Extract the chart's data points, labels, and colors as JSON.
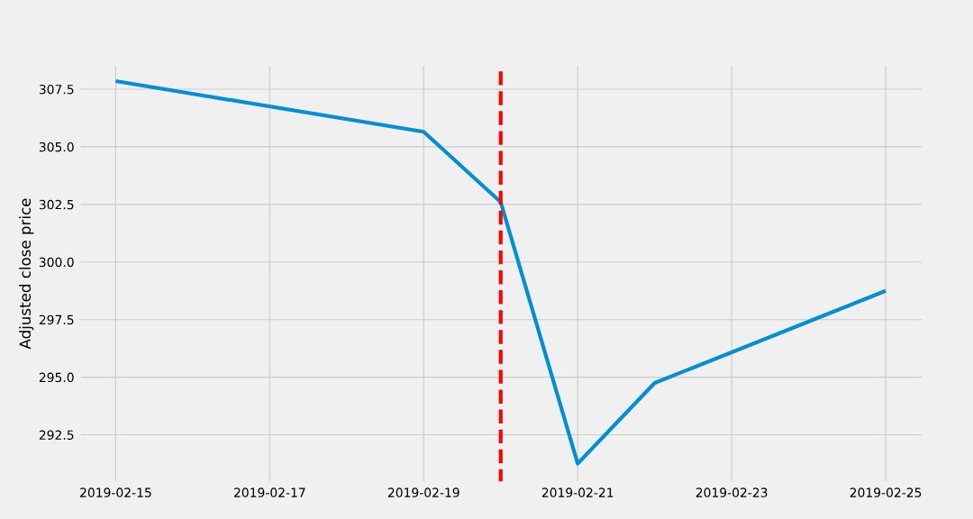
{
  "chart_data": {
    "type": "line",
    "ylabel": "Adjusted close price",
    "x": [
      "2019-02-15",
      "2019-02-19",
      "2019-02-20",
      "2019-02-21",
      "2019-02-22",
      "2019-02-25"
    ],
    "series": [
      {
        "color": "#008fd5",
        "values": [
          307.85,
          305.65,
          302.6,
          291.25,
          294.75,
          298.75
        ]
      }
    ],
    "xlim": [
      "2019-02-14T12:30",
      "2019-02-25T11:45"
    ],
    "xticks": [
      "2019-02-15",
      "2019-02-17",
      "2019-02-19",
      "2019-02-21",
      "2019-02-23",
      "2019-02-25"
    ],
    "ylim": [
      290.4,
      308.6
    ],
    "yticks": [
      {
        "value": 292.5,
        "label": "292.5"
      },
      {
        "value": 295,
        "label": "295.0"
      },
      {
        "value": 297.5,
        "label": "297.5"
      },
      {
        "value": 300,
        "label": "300.0"
      },
      {
        "value": 302.5,
        "label": "302.5"
      },
      {
        "value": 305,
        "label": "305.0"
      },
      {
        "value": 307.5,
        "label": "307.5"
      }
    ],
    "ref_lines": [
      {
        "axis": "x",
        "value": "2019-02-20",
        "color": "#ff0000",
        "line_style": "dashed"
      }
    ],
    "grid": true,
    "marker": "none",
    "line_style": "solid"
  }
}
